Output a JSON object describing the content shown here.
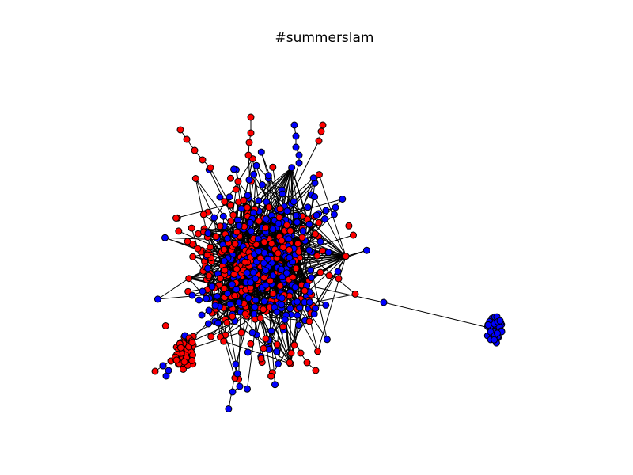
{
  "figure": {
    "title": "#summerslam",
    "node_colors": {
      "group_a": "#ff0000",
      "group_b": "#0000ff"
    },
    "node_stroke": "#000000",
    "edge_color": "#000000",
    "background": "#ffffff"
  }
}
